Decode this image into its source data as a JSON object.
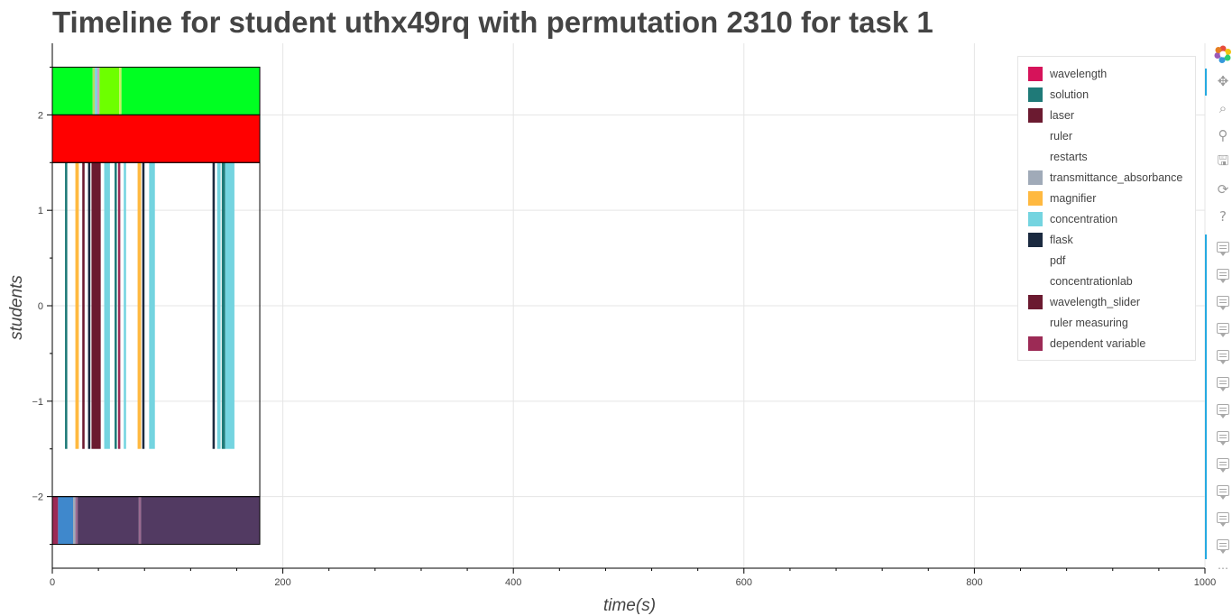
{
  "chart_data": {
    "type": "timeline",
    "title": "Timeline for student uthx49rq with permutation 2310 for task 1",
    "xlabel": "time(s)",
    "ylabel": "students",
    "xlim": [
      0,
      1000
    ],
    "ylim": [
      -2.75,
      2.75
    ],
    "x_ticks": [
      0,
      200,
      400,
      600,
      800,
      1000
    ],
    "y_ticks": [
      -2,
      -1,
      0,
      1,
      2
    ],
    "grid": true,
    "legend_position": "top-right",
    "legend": [
      {
        "label": "wavelength",
        "color": "#d6135a"
      },
      {
        "label": "solution",
        "color": "#1f7a78"
      },
      {
        "label": "laser",
        "color": "#6b1a30"
      },
      {
        "label": "ruler",
        "color": "#ffffff"
      },
      {
        "label": "restarts",
        "color": "#ffffff"
      },
      {
        "label": "transmittance_absorbance",
        "color": "#a0aab8"
      },
      {
        "label": "magnifier",
        "color": "#ffb940"
      },
      {
        "label": "concentration",
        "color": "#74d4e0"
      },
      {
        "label": "flask",
        "color": "#1b2a40"
      },
      {
        "label": "pdf",
        "color": "#ffffff"
      },
      {
        "label": "concentrationlab",
        "color": "#ffffff"
      },
      {
        "label": "wavelength_slider",
        "color": "#6b1a30"
      },
      {
        "label": "ruler measuring",
        "color": "#ffffff"
      },
      {
        "label": "dependent variable",
        "color": "#9c2a55"
      }
    ],
    "rows": [
      {
        "y": 2.25,
        "height": 0.5,
        "segments": [
          {
            "start": 0,
            "end": 35,
            "color": "#00ff22"
          },
          {
            "start": 35,
            "end": 37,
            "color": "#b8d860"
          },
          {
            "start": 37,
            "end": 39,
            "color": "#74d4e0"
          },
          {
            "start": 39,
            "end": 41,
            "color": "#c9a0c0"
          },
          {
            "start": 41,
            "end": 58,
            "color": "#6dff00"
          },
          {
            "start": 58,
            "end": 60,
            "color": "#c9f060"
          },
          {
            "start": 60,
            "end": 180,
            "color": "#00ff22"
          }
        ]
      },
      {
        "y": 1.75,
        "height": 0.5,
        "segments": [
          {
            "start": 0,
            "end": 180,
            "color": "#ff0000"
          }
        ]
      },
      {
        "y": 0,
        "height": 3,
        "segments": [
          {
            "start": 11,
            "end": 13,
            "color": "#1f7a78"
          },
          {
            "start": 20,
            "end": 23,
            "color": "#ffb940"
          },
          {
            "start": 26,
            "end": 28,
            "color": "#6b1a30"
          },
          {
            "start": 31,
            "end": 33,
            "color": "#1b2a40"
          },
          {
            "start": 34,
            "end": 42,
            "color": "#6b1a30"
          },
          {
            "start": 45,
            "end": 50,
            "color": "#74d4e0"
          },
          {
            "start": 54,
            "end": 56,
            "color": "#1f7a78"
          },
          {
            "start": 57,
            "end": 59,
            "color": "#9c2a55"
          },
          {
            "start": 62,
            "end": 64,
            "color": "#74d4e0"
          },
          {
            "start": 74,
            "end": 77,
            "color": "#ffb940"
          },
          {
            "start": 78,
            "end": 80,
            "color": "#1b2a40"
          },
          {
            "start": 84,
            "end": 89,
            "color": "#74d4e0"
          },
          {
            "start": 139,
            "end": 141,
            "color": "#1b2a40"
          },
          {
            "start": 143,
            "end": 146,
            "color": "#74d4e0"
          },
          {
            "start": 147,
            "end": 150,
            "color": "#1f7a78"
          },
          {
            "start": 150,
            "end": 158,
            "color": "#74d4e0"
          }
        ]
      },
      {
        "y": -2.25,
        "height": 0.5,
        "segments": [
          {
            "start": 0,
            "end": 5,
            "color": "#9c2a55"
          },
          {
            "start": 5,
            "end": 18,
            "color": "#3f88cc"
          },
          {
            "start": 18,
            "end": 20,
            "color": "#a0aab8"
          },
          {
            "start": 20,
            "end": 22,
            "color": "#9a6a90"
          },
          {
            "start": 22,
            "end": 75,
            "color": "#523a62"
          },
          {
            "start": 75,
            "end": 77,
            "color": "#9a6a90"
          },
          {
            "start": 77,
            "end": 180,
            "color": "#523a62"
          }
        ]
      }
    ],
    "outlines": [
      {
        "start": 0,
        "end": 180,
        "y0": 2,
        "y1": 2.5
      },
      {
        "start": 0,
        "end": 180,
        "y0": 1.5,
        "y1": 2
      },
      {
        "start": 0,
        "end": 180,
        "y0": -2,
        "y1": 1.5
      },
      {
        "start": 0,
        "end": 180,
        "y0": -2.5,
        "y1": -2
      }
    ]
  },
  "toolbar": {
    "tools": [
      {
        "name": "pan-icon",
        "glyph": "✥"
      },
      {
        "name": "box-zoom-icon",
        "glyph": "⌕"
      },
      {
        "name": "wheel-zoom-icon",
        "glyph": "⚲"
      },
      {
        "name": "save-icon",
        "glyph": "🖫"
      },
      {
        "name": "reset-icon",
        "glyph": "⟳"
      },
      {
        "name": "help-icon",
        "glyph": "?"
      }
    ],
    "more": "⋯"
  }
}
